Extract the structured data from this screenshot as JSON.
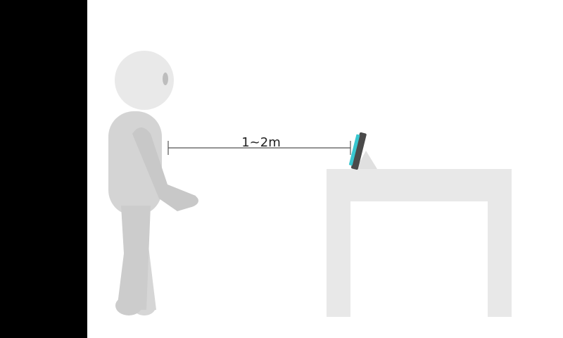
{
  "diagram": {
    "distance_label": "1~2m",
    "colors": {
      "background": "#ffffff",
      "left_bar": "#000000",
      "figure_head": "#e9e9e9",
      "figure_body": "#d2d2d2",
      "figure_limb_front": "#c9c9c9",
      "figure_eye": "#bdbdbd",
      "table": "#e8e8e8",
      "device_body": "#4a4a4a",
      "device_screen": "#38c6cf",
      "measure_line": "#555555"
    },
    "icons": {
      "person": "person-figure-icon",
      "device": "tablet-device-icon",
      "table": "table-icon"
    }
  }
}
